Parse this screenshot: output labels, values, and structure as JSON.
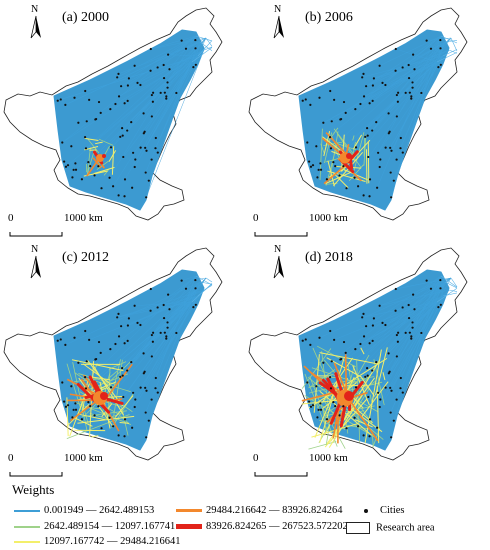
{
  "panels": [
    {
      "id": "a",
      "title": "(a) 2000",
      "north": "N",
      "scale_start": "0",
      "scale_end": "1000 km",
      "intensity": 0
    },
    {
      "id": "b",
      "title": "(b) 2006",
      "north": "N",
      "scale_start": "0",
      "scale_end": "1000 km",
      "intensity": 1
    },
    {
      "id": "c",
      "title": "(c) 2012",
      "north": "N",
      "scale_start": "0",
      "scale_end": "1000 km",
      "intensity": 2
    },
    {
      "id": "d",
      "title": "(d) 2018",
      "north": "N",
      "scale_start": "0",
      "scale_end": "1000 km",
      "intensity": 3
    }
  ],
  "legend": {
    "title": "Weights",
    "classes": [
      {
        "label": "0.001949 — 2642.489153",
        "color": "#3e9ed6"
      },
      {
        "label": "2642.489154 — 12097.167741",
        "color": "#9fd28a"
      },
      {
        "label": "12097.167742 — 29484.216641",
        "color": "#f3ef6b"
      },
      {
        "label": "29484.216642 — 83926.824264",
        "color": "#f3882d"
      },
      {
        "label": "83926.824265 — 267523.572202",
        "color": "#e2231a"
      }
    ],
    "cities_label": "Cities",
    "research_area_label": "Research area"
  },
  "colors": {
    "network": "#3c9ad1",
    "outline": "#222222",
    "city": "#111111"
  }
}
